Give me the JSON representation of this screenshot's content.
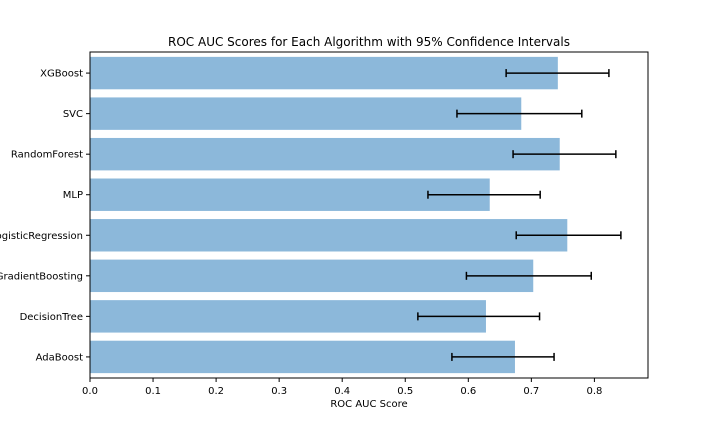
{
  "chart_data": {
    "type": "bar",
    "orientation": "horizontal",
    "title": "ROC AUC Scores for Each Algorithm with 95% Confidence Intervals",
    "xlabel": "ROC AUC Score",
    "ylabel": "",
    "xlim": [
      0.0,
      0.885
    ],
    "xticks": [
      "0.0",
      "0.1",
      "0.2",
      "0.3",
      "0.4",
      "0.5",
      "0.6",
      "0.7",
      "0.8"
    ],
    "categories": [
      "XGBoost",
      "SVC",
      "RandomForest",
      "MLP",
      "LogisticRegression",
      "GradientBoosting",
      "DecisionTree",
      "AdaBoost"
    ],
    "values": [
      0.742,
      0.684,
      0.745,
      0.634,
      0.757,
      0.703,
      0.628,
      0.674
    ],
    "ci_low": [
      0.66,
      0.582,
      0.671,
      0.536,
      0.676,
      0.597,
      0.52,
      0.574
    ],
    "ci_high": [
      0.823,
      0.78,
      0.834,
      0.714,
      0.842,
      0.795,
      0.713,
      0.736
    ],
    "grid": false,
    "legend": "none",
    "colors": {
      "bar": "#8cb8da",
      "errorbar": "#000000",
      "axes": "#000000"
    }
  }
}
